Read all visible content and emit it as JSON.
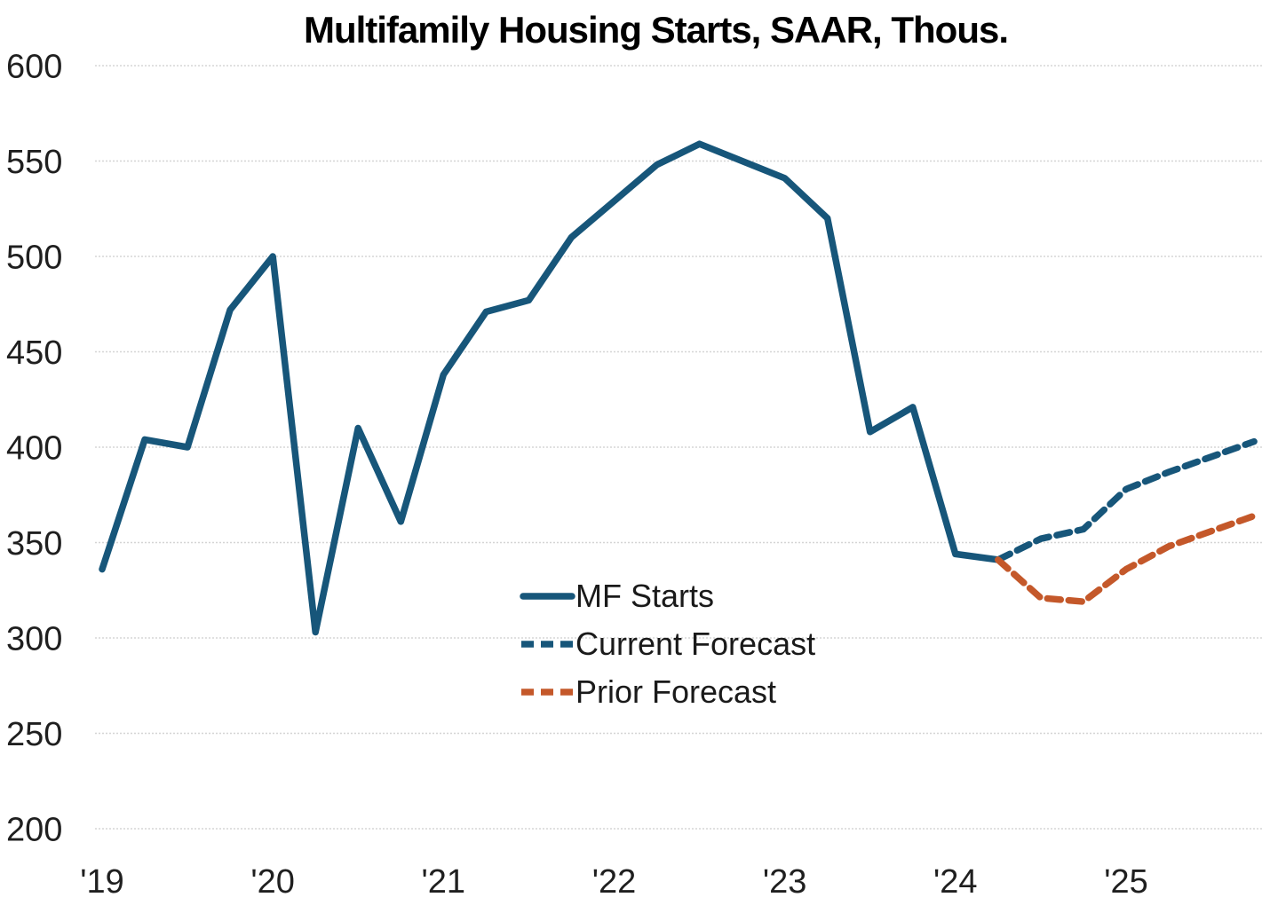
{
  "chart_data": {
    "type": "line",
    "title": "Multifamily Housing Starts, SAAR, Thous.",
    "x_axis": {
      "tick_labels": [
        "'19",
        "'20",
        "'21",
        "'22",
        "'23",
        "'24",
        "'25"
      ],
      "unit": "year",
      "points_per_year": 4,
      "frequency": "quarterly"
    },
    "y_axis": {
      "ticks": [
        600,
        550,
        500,
        450,
        400,
        350,
        300,
        250,
        200
      ],
      "range": [
        200,
        600
      ]
    },
    "grid": {
      "horizontal": true,
      "vertical": false,
      "style": "dotted",
      "color": "#d5d5d5"
    },
    "colors": {
      "actual": "#17567A",
      "current_forecast": "#17567A",
      "prior_forecast": "#C4582A"
    },
    "series": [
      {
        "name": "MF Starts",
        "line_style": "solid",
        "color_key": "actual",
        "start_quarter": "2019Q1",
        "values": [
          336,
          404,
          400,
          472,
          500,
          303,
          410,
          361,
          438,
          471,
          477,
          510,
          529,
          548,
          559,
          550,
          541,
          520,
          408,
          421,
          344,
          341
        ]
      },
      {
        "name": "Current Forecast",
        "line_style": "dashed",
        "color_key": "current_forecast",
        "start_quarter": "2024Q2",
        "values": [
          341,
          352,
          357,
          378,
          387,
          395,
          403
        ]
      },
      {
        "name": "Prior Forecast",
        "line_style": "dashed",
        "color_key": "prior_forecast",
        "start_quarter": "2024Q2",
        "values": [
          341,
          321,
          319,
          336,
          348,
          356,
          364
        ]
      }
    ],
    "legend": {
      "position": "inside-lower-center",
      "items": [
        {
          "label": "MF Starts",
          "style": "solid",
          "color_key": "actual"
        },
        {
          "label": "Current Forecast",
          "style": "dashed",
          "color_key": "current_forecast"
        },
        {
          "label": "Prior Forecast",
          "style": "dashed",
          "color_key": "prior_forecast"
        }
      ]
    }
  }
}
